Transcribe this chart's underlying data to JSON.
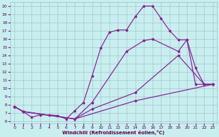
{
  "xlabel": "Windchill (Refroidissement éolien,°C)",
  "bg_color": "#c8eeed",
  "line_color": "#882299",
  "grid_color": "#99bbcc",
  "xlim": [
    -0.5,
    23.5
  ],
  "ylim": [
    5.8,
    20.5
  ],
  "yticks": [
    6,
    7,
    8,
    9,
    10,
    11,
    12,
    13,
    14,
    15,
    16,
    17,
    18,
    19,
    20
  ],
  "xticks": [
    0,
    1,
    2,
    3,
    4,
    5,
    6,
    7,
    8,
    9,
    10,
    11,
    12,
    13,
    14,
    15,
    16,
    17,
    18,
    19,
    20,
    21,
    22,
    23
  ],
  "line1_x": [
    0,
    1,
    2,
    3,
    4,
    5,
    6,
    7,
    8,
    9,
    10,
    11,
    12,
    13,
    14,
    15,
    16,
    17,
    18,
    19,
    20,
    21,
    22,
    23
  ],
  "line1_y": [
    7.8,
    7.2,
    6.5,
    6.8,
    6.8,
    6.7,
    6.3,
    7.3,
    8.3,
    11.5,
    14.9,
    16.8,
    17.1,
    17.1,
    18.7,
    20.0,
    20.0,
    18.5,
    17.0,
    15.9,
    15.9,
    12.5,
    10.5,
    10.5
  ],
  "line2_x": [
    0,
    1,
    7,
    9,
    13,
    15,
    16,
    19,
    20,
    21,
    22,
    23
  ],
  "line2_y": [
    7.8,
    7.2,
    6.3,
    8.3,
    14.5,
    15.8,
    16.0,
    14.5,
    15.9,
    10.5,
    10.5,
    10.5
  ],
  "line3_x": [
    0,
    1,
    7,
    9,
    14,
    19,
    22,
    23
  ],
  "line3_y": [
    7.8,
    7.2,
    6.3,
    7.5,
    9.5,
    14.0,
    10.5,
    10.5
  ],
  "line4_x": [
    0,
    1,
    7,
    14,
    23
  ],
  "line4_y": [
    7.8,
    7.2,
    6.3,
    8.5,
    10.5
  ]
}
